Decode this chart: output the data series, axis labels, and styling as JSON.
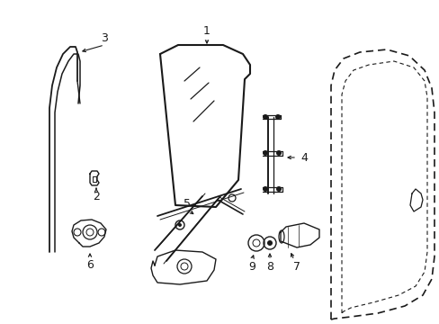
{
  "bg_color": "#ffffff",
  "lc": "#1a1a1a",
  "figsize": [
    4.89,
    3.6
  ],
  "dpi": 100
}
